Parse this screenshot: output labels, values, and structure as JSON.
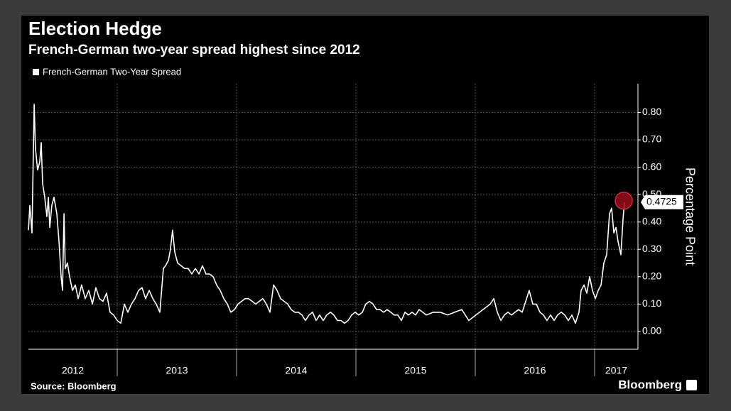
{
  "chart_data": {
    "type": "line",
    "title": "Election Hedge",
    "subtitle": "French-German two-year spread highest since 2012",
    "y_axis_label": "Percentage Point",
    "source": "Source: Bloomberg",
    "brand": "Bloomberg",
    "legend": "top-left",
    "grid": true,
    "xlim": [
      2012.256,
      2017.363
    ],
    "xticks": [
      2013,
      2014,
      2015,
      2016,
      2017
    ],
    "x_labels": [
      "2012",
      "2013",
      "2014",
      "2015",
      "2016",
      "2017"
    ],
    "ylim": [
      -0.065,
      0.905
    ],
    "yticks": [
      {
        "value": 0,
        "label": "0.00"
      },
      {
        "value": 0.1,
        "label": "0.10"
      },
      {
        "value": 0.2,
        "label": "0.20"
      },
      {
        "value": 0.3,
        "label": "0.30"
      },
      {
        "value": 0.4,
        "label": "0.40"
      },
      {
        "value": 0.5,
        "label": "0.50"
      },
      {
        "value": 0.6,
        "label": "0.60"
      },
      {
        "value": 0.7,
        "label": "0.70"
      },
      {
        "value": 0.8,
        "label": "0.80"
      }
    ],
    "x": [
      2012.256,
      2012.268,
      2012.286,
      2012.304,
      2012.315,
      2012.333,
      2012.351,
      2012.363,
      2012.375,
      2012.393,
      2012.411,
      2012.423,
      2012.435,
      2012.452,
      2012.47,
      2012.494,
      2012.512,
      2012.53,
      2012.542,
      2012.554,
      2012.565,
      2012.583,
      2012.601,
      2012.625,
      2012.649,
      2012.673,
      2012.702,
      2012.732,
      2012.762,
      2012.792,
      2012.821,
      2012.851,
      2012.881,
      2012.911,
      2012.94,
      2012.97,
      2013.0,
      2013.03,
      2013.06,
      2013.089,
      2013.119,
      2013.149,
      2013.179,
      2013.208,
      2013.238,
      2013.268,
      2013.298,
      2013.327,
      2013.357,
      2013.387,
      2013.405,
      2013.429,
      2013.446,
      2013.464,
      2013.482,
      2013.506,
      2013.536,
      2013.565,
      2013.595,
      2013.625,
      2013.655,
      2013.685,
      2013.714,
      2013.744,
      2013.774,
      2013.804,
      2013.833,
      2013.863,
      2013.893,
      2013.923,
      2013.952,
      2013.982,
      2014.012,
      2014.042,
      2014.071,
      2014.101,
      2014.131,
      2014.161,
      2014.19,
      2014.22,
      2014.25,
      2014.28,
      2014.31,
      2014.339,
      2014.369,
      2014.399,
      2014.429,
      2014.458,
      2014.488,
      2014.518,
      2014.548,
      2014.577,
      2014.607,
      2014.637,
      2014.667,
      2014.696,
      2014.726,
      2014.756,
      2014.786,
      2014.815,
      2014.845,
      2014.875,
      2014.905,
      2014.935,
      2014.964,
      2014.994,
      2015.024,
      2015.054,
      2015.083,
      2015.113,
      2015.143,
      2015.173,
      2015.202,
      2015.232,
      2015.262,
      2015.292,
      2015.321,
      2015.351,
      2015.381,
      2015.411,
      2015.44,
      2015.47,
      2015.5,
      2015.53,
      2015.56,
      2015.589,
      2015.649,
      2015.708,
      2015.768,
      2015.827,
      2015.887,
      2015.946,
      2016.006,
      2016.065,
      2016.125,
      2016.155,
      2016.185,
      2016.214,
      2016.244,
      2016.274,
      2016.304,
      2016.333,
      2016.363,
      2016.393,
      2016.423,
      2016.452,
      2016.482,
      2016.512,
      2016.542,
      2016.571,
      2016.601,
      2016.631,
      2016.661,
      2016.69,
      2016.72,
      2016.75,
      2016.78,
      2016.81,
      2016.839,
      2016.869,
      2016.887,
      2016.911,
      2016.935,
      2016.958,
      2016.982,
      2017.006,
      2017.03,
      2017.054,
      2017.077,
      2017.101,
      2017.125,
      2017.143,
      2017.161,
      2017.179,
      2017.196,
      2017.22,
      2017.238,
      2017.25
    ],
    "series": [
      {
        "name": "French-German Two-Year Spread",
        "color": "#ffffff",
        "values": [
          0.37,
          0.46,
          0.36,
          0.83,
          0.67,
          0.59,
          0.62,
          0.69,
          0.54,
          0.49,
          0.42,
          0.49,
          0.38,
          0.46,
          0.49,
          0.43,
          0.33,
          0.2,
          0.15,
          0.43,
          0.23,
          0.25,
          0.2,
          0.15,
          0.17,
          0.12,
          0.17,
          0.12,
          0.15,
          0.1,
          0.16,
          0.12,
          0.11,
          0.14,
          0.07,
          0.06,
          0.04,
          0.03,
          0.1,
          0.07,
          0.1,
          0.12,
          0.15,
          0.16,
          0.12,
          0.15,
          0.12,
          0.1,
          0.07,
          0.23,
          0.24,
          0.26,
          0.3,
          0.37,
          0.29,
          0.25,
          0.24,
          0.23,
          0.23,
          0.21,
          0.23,
          0.21,
          0.24,
          0.21,
          0.21,
          0.2,
          0.17,
          0.15,
          0.12,
          0.1,
          0.07,
          0.08,
          0.1,
          0.11,
          0.12,
          0.12,
          0.11,
          0.1,
          0.11,
          0.12,
          0.1,
          0.07,
          0.17,
          0.15,
          0.12,
          0.11,
          0.1,
          0.08,
          0.07,
          0.07,
          0.06,
          0.04,
          0.06,
          0.07,
          0.04,
          0.06,
          0.04,
          0.06,
          0.07,
          0.06,
          0.04,
          0.04,
          0.03,
          0.04,
          0.06,
          0.07,
          0.06,
          0.07,
          0.1,
          0.11,
          0.1,
          0.08,
          0.08,
          0.07,
          0.08,
          0.07,
          0.06,
          0.06,
          0.04,
          0.07,
          0.06,
          0.07,
          0.06,
          0.08,
          0.07,
          0.06,
          0.07,
          0.07,
          0.06,
          0.07,
          0.08,
          0.04,
          0.06,
          0.08,
          0.1,
          0.12,
          0.07,
          0.04,
          0.06,
          0.07,
          0.06,
          0.07,
          0.08,
          0.07,
          0.11,
          0.15,
          0.1,
          0.1,
          0.07,
          0.06,
          0.04,
          0.06,
          0.04,
          0.06,
          0.07,
          0.06,
          0.04,
          0.06,
          0.03,
          0.07,
          0.15,
          0.17,
          0.14,
          0.2,
          0.15,
          0.12,
          0.15,
          0.17,
          0.25,
          0.28,
          0.43,
          0.45,
          0.36,
          0.38,
          0.33,
          0.28,
          0.41,
          0.4725
        ]
      }
    ]
  }
}
